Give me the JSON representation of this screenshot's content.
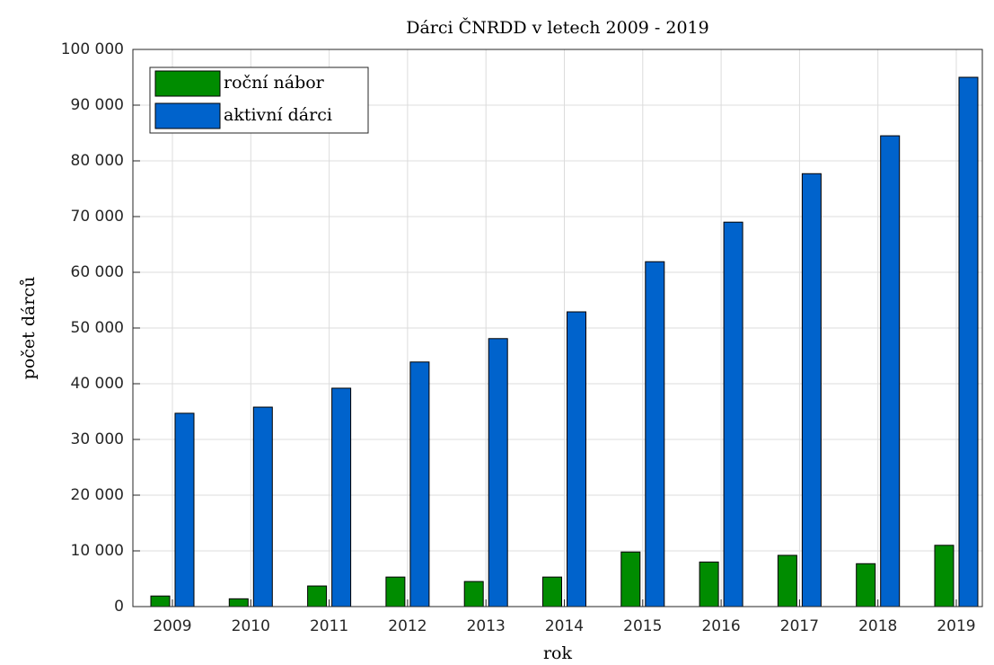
{
  "chart_data": {
    "type": "bar",
    "title": "Dárci ČNRDD v letech 2009 - 2019",
    "xlabel": "rok",
    "ylabel": "počet dárců",
    "categories": [
      "2009",
      "2010",
      "2011",
      "2012",
      "2013",
      "2014",
      "2015",
      "2016",
      "2017",
      "2018",
      "2019"
    ],
    "series": [
      {
        "name": "roční nábor",
        "color": "#008c00",
        "values": [
          1900,
          1400,
          3700,
          5300,
          4500,
          5300,
          9800,
          8000,
          9200,
          7700,
          11000
        ]
      },
      {
        "name": "aktivní dárci",
        "color": "#0063cc",
        "values": [
          34700,
          35800,
          39200,
          43900,
          48100,
          52900,
          61900,
          69000,
          77700,
          84500,
          95000
        ]
      }
    ],
    "ylim": [
      0,
      100000
    ],
    "yticks": [
      0,
      {
        "value": 10000,
        "label": "10 000"
      },
      {
        "value": 20000,
        "label": "20 000"
      },
      {
        "value": 30000,
        "label": "30 000"
      },
      {
        "value": 40000,
        "label": "40 000"
      },
      {
        "value": 50000,
        "label": "50 000"
      },
      {
        "value": 60000,
        "label": "60 000"
      },
      {
        "value": 70000,
        "label": "70 000"
      },
      {
        "value": 80000,
        "label": "80 000"
      },
      {
        "value": 90000,
        "label": "90 000"
      },
      {
        "value": 100000,
        "label": "100 000"
      }
    ],
    "grid": true,
    "legend": "upper left"
  }
}
